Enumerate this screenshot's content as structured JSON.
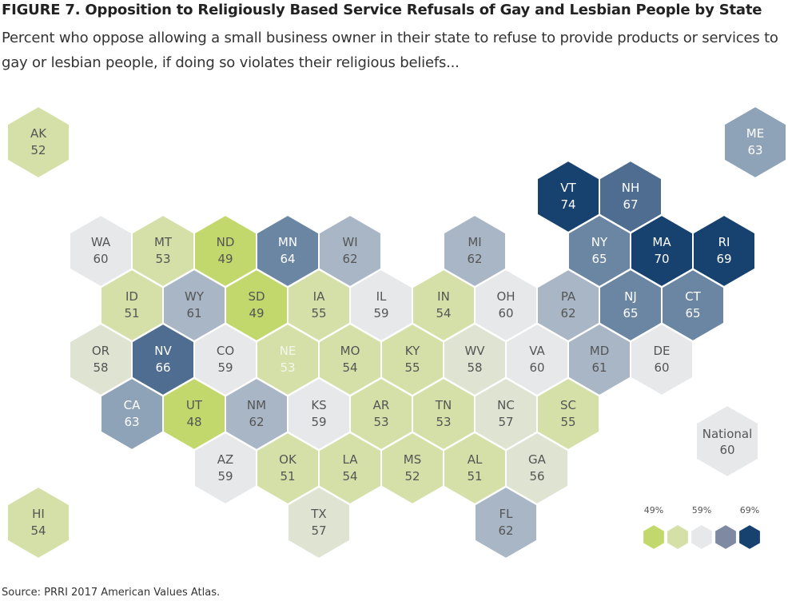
{
  "title": "FIGURE 7.  Opposition to Religiously Based Service Refusals of Gay and Lesbian People by State",
  "subtitle": "Percent who oppose allowing a small business owner in their state to refuse to provide products or services to gay or lesbian people, if doing so violates their religious beliefs...",
  "source": "Source: PRRI 2017 American Values Atlas.",
  "chart_data": {
    "type": "hex-tile-map",
    "unit": "%",
    "colors": {
      "48-49": "#c2d86c",
      "50-55": "#d4e0a8",
      "56-58": "#dfe3d2",
      "59-60": "#e7e8ea",
      "61-62": "#a8b6c5",
      "63": "#8fa3b8",
      "64-65": "#6a86a2",
      "66-67": "#4e6d90",
      "69-74": "#17416e"
    },
    "states": [
      {
        "abbr": "AK",
        "value": 52,
        "row": 0,
        "col": 0
      },
      {
        "abbr": "ME",
        "value": 63,
        "row": 0,
        "col": 11.5
      },
      {
        "abbr": "VT",
        "value": 74,
        "row": 1,
        "col": 8.5
      },
      {
        "abbr": "NH",
        "value": 67,
        "row": 1,
        "col": 9.5
      },
      {
        "abbr": "WA",
        "value": 60,
        "row": 2,
        "col": 1
      },
      {
        "abbr": "MT",
        "value": 53,
        "row": 2,
        "col": 2
      },
      {
        "abbr": "ND",
        "value": 49,
        "row": 2,
        "col": 3
      },
      {
        "abbr": "MN",
        "value": 64,
        "row": 2,
        "col": 4
      },
      {
        "abbr": "WI",
        "value": 62,
        "row": 2,
        "col": 5
      },
      {
        "abbr": "MI",
        "value": 62,
        "row": 2,
        "col": 7
      },
      {
        "abbr": "NY",
        "value": 65,
        "row": 2,
        "col": 9
      },
      {
        "abbr": "MA",
        "value": 70,
        "row": 2,
        "col": 10
      },
      {
        "abbr": "RI",
        "value": 69,
        "row": 2,
        "col": 11
      },
      {
        "abbr": "ID",
        "value": 51,
        "row": 3,
        "col": 1.5
      },
      {
        "abbr": "WY",
        "value": 61,
        "row": 3,
        "col": 2.5
      },
      {
        "abbr": "SD",
        "value": 49,
        "row": 3,
        "col": 3.5
      },
      {
        "abbr": "IA",
        "value": 55,
        "row": 3,
        "col": 4.5
      },
      {
        "abbr": "IL",
        "value": 59,
        "row": 3,
        "col": 5.5
      },
      {
        "abbr": "IN",
        "value": 54,
        "row": 3,
        "col": 6.5
      },
      {
        "abbr": "OH",
        "value": 60,
        "row": 3,
        "col": 7.5
      },
      {
        "abbr": "PA",
        "value": 62,
        "row": 3,
        "col": 8.5
      },
      {
        "abbr": "NJ",
        "value": 65,
        "row": 3,
        "col": 9.5
      },
      {
        "abbr": "CT",
        "value": 65,
        "row": 3,
        "col": 10.5
      },
      {
        "abbr": "OR",
        "value": 58,
        "row": 4,
        "col": 1
      },
      {
        "abbr": "NV",
        "value": 66,
        "row": 4,
        "col": 2
      },
      {
        "abbr": "CO",
        "value": 59,
        "row": 4,
        "col": 3
      },
      {
        "abbr": "NE",
        "value": 53,
        "row": 4,
        "col": 4
      },
      {
        "abbr": "MO",
        "value": 54,
        "row": 4,
        "col": 5
      },
      {
        "abbr": "KY",
        "value": 55,
        "row": 4,
        "col": 6
      },
      {
        "abbr": "WV",
        "value": 58,
        "row": 4,
        "col": 7
      },
      {
        "abbr": "VA",
        "value": 60,
        "row": 4,
        "col": 8
      },
      {
        "abbr": "MD",
        "value": 61,
        "row": 4,
        "col": 9
      },
      {
        "abbr": "DE",
        "value": 60,
        "row": 4,
        "col": 10
      },
      {
        "abbr": "CA",
        "value": 63,
        "row": 5,
        "col": 1.5
      },
      {
        "abbr": "UT",
        "value": 48,
        "row": 5,
        "col": 2.5
      },
      {
        "abbr": "NM",
        "value": 62,
        "row": 5,
        "col": 3.5
      },
      {
        "abbr": "KS",
        "value": 59,
        "row": 5,
        "col": 4.5
      },
      {
        "abbr": "AR",
        "value": 53,
        "row": 5,
        "col": 5.5
      },
      {
        "abbr": "TN",
        "value": 53,
        "row": 5,
        "col": 6.5
      },
      {
        "abbr": "NC",
        "value": 57,
        "row": 5,
        "col": 7.5
      },
      {
        "abbr": "SC",
        "value": 55,
        "row": 5,
        "col": 8.5
      },
      {
        "abbr": "AZ",
        "value": 59,
        "row": 6,
        "col": 3
      },
      {
        "abbr": "OK",
        "value": 51,
        "row": 6,
        "col": 4
      },
      {
        "abbr": "LA",
        "value": 54,
        "row": 6,
        "col": 5
      },
      {
        "abbr": "MS",
        "value": 52,
        "row": 6,
        "col": 6
      },
      {
        "abbr": "AL",
        "value": 51,
        "row": 6,
        "col": 7
      },
      {
        "abbr": "GA",
        "value": 56,
        "row": 6,
        "col": 8
      },
      {
        "abbr": "HI",
        "value": 54,
        "row": 7,
        "col": 0
      },
      {
        "abbr": "TX",
        "value": 57,
        "row": 7,
        "col": 4.5
      },
      {
        "abbr": "FL",
        "value": 62,
        "row": 7,
        "col": 7.5
      }
    ],
    "national": {
      "label": "National",
      "value": 60
    },
    "legend": {
      "labels": [
        "49%",
        "59%",
        "69%"
      ],
      "swatches": [
        "#c2d86c",
        "#d4e0a8",
        "#e7e8ea",
        "#7e8aa2",
        "#17416e"
      ]
    }
  }
}
